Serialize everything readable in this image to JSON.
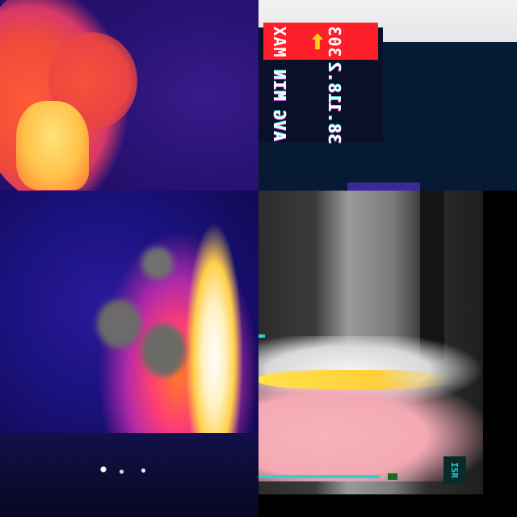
{
  "layout": "2x2 thermal image collage",
  "panels": [
    {
      "id": "top-left",
      "description": "fire plume, iron/red palette",
      "palette_colors": [
        "#24106c",
        "#f04a3a",
        "#ffc24a"
      ]
    },
    {
      "id": "top-right",
      "description": "thermal camera on-screen readout (shown rotated)",
      "readout": [
        {
          "label": "MAX",
          "value": "303",
          "highlight_color": "#ff1f2a"
        },
        {
          "label": "MIN",
          "value": "18.2"
        },
        {
          "label": "AVG",
          "value": "38.1"
        }
      ],
      "arrow_icon": "arrow-indicator-icon"
    },
    {
      "id": "bottom-left",
      "description": "wildfire smoke column at night, blue/purple palette",
      "palette_colors": [
        "#120a58",
        "#ff3e74",
        "#ffffff"
      ]
    },
    {
      "id": "bottom-right",
      "description": "grayscale thermal view with pink/yellow hot region",
      "tag_text": "ISR",
      "line_color": "#2ad2d8"
    }
  ]
}
